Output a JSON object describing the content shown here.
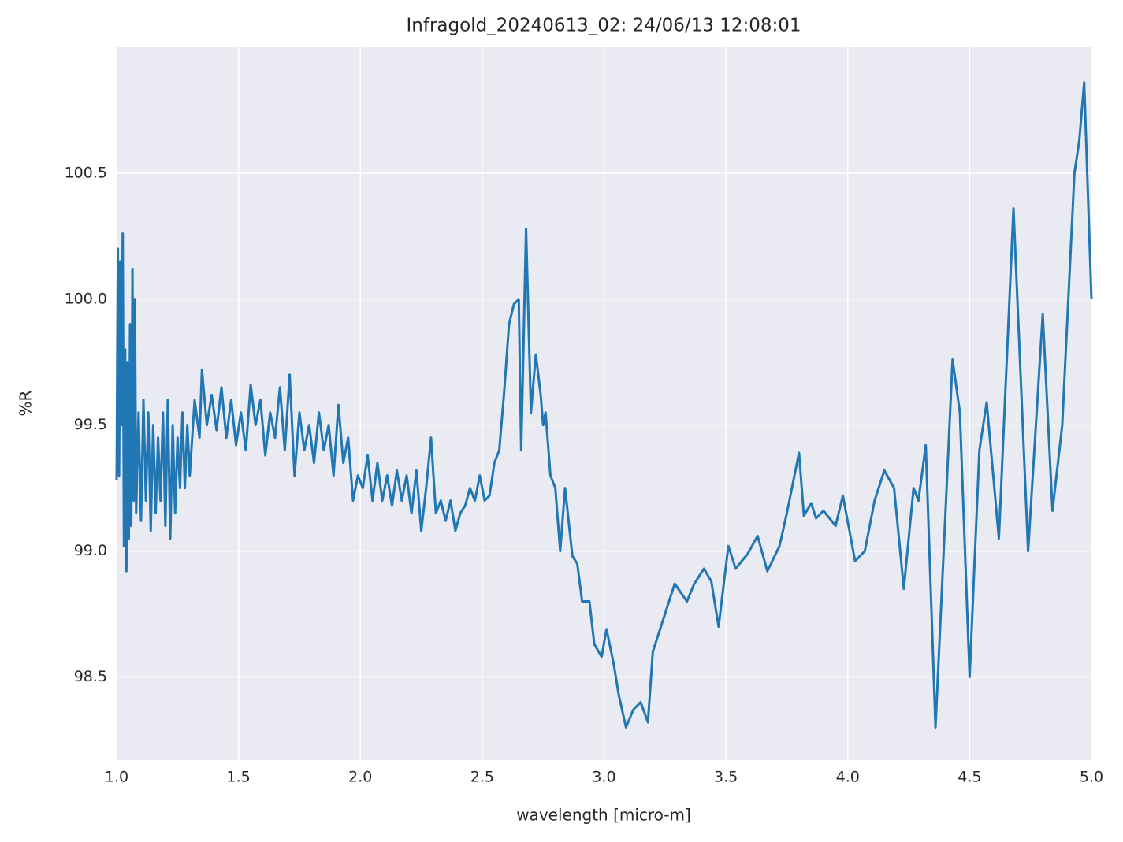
{
  "chart_data": {
    "type": "line",
    "title": "Infragold_20240613_02:  24/06/13 12:08:01",
    "xlabel": "wavelength [micro-m]",
    "ylabel": "%R",
    "xlim": [
      1.0,
      5.0
    ],
    "ylim": [
      98.17,
      101.0
    ],
    "xticks": [
      {
        "value": 1,
        "label": "1.0"
      },
      1.5,
      {
        "value": 2,
        "label": "2.0"
      },
      2.5,
      {
        "value": 3,
        "label": "3.0"
      },
      3.5,
      {
        "value": 4,
        "label": "4.0"
      },
      4.5,
      {
        "value": 5,
        "label": "5.0"
      }
    ],
    "yticks": [
      98.5,
      {
        "value": 99,
        "label": "99.0"
      },
      99.5,
      {
        "value": 100,
        "label": "100.0"
      },
      100.5
    ],
    "grid": true,
    "x": [
      1.0,
      1.005,
      1.01,
      1.015,
      1.02,
      1.025,
      1.03,
      1.035,
      1.04,
      1.045,
      1.05,
      1.055,
      1.06,
      1.065,
      1.07,
      1.075,
      1.08,
      1.09,
      1.1,
      1.11,
      1.12,
      1.13,
      1.14,
      1.15,
      1.16,
      1.17,
      1.18,
      1.19,
      1.2,
      1.21,
      1.22,
      1.23,
      1.24,
      1.25,
      1.26,
      1.27,
      1.28,
      1.29,
      1.3,
      1.32,
      1.34,
      1.35,
      1.37,
      1.39,
      1.41,
      1.43,
      1.45,
      1.47,
      1.49,
      1.51,
      1.53,
      1.55,
      1.57,
      1.59,
      1.61,
      1.63,
      1.65,
      1.67,
      1.69,
      1.71,
      1.73,
      1.75,
      1.77,
      1.79,
      1.81,
      1.83,
      1.85,
      1.87,
      1.89,
      1.91,
      1.93,
      1.95,
      1.97,
      1.99,
      2.01,
      2.03,
      2.05,
      2.07,
      2.09,
      2.11,
      2.13,
      2.15,
      2.17,
      2.19,
      2.21,
      2.23,
      2.25,
      2.27,
      2.29,
      2.31,
      2.33,
      2.35,
      2.37,
      2.39,
      2.41,
      2.43,
      2.45,
      2.47,
      2.49,
      2.51,
      2.53,
      2.55,
      2.57,
      2.59,
      2.61,
      2.63,
      2.65,
      2.66,
      2.68,
      2.7,
      2.72,
      2.74,
      2.75,
      2.76,
      2.78,
      2.8,
      2.82,
      2.84,
      2.87,
      2.89,
      2.91,
      2.94,
      2.96,
      2.99,
      3.01,
      3.04,
      3.06,
      3.09,
      3.12,
      3.15,
      3.18,
      3.2,
      3.25,
      3.29,
      3.34,
      3.37,
      3.41,
      3.44,
      3.47,
      3.51,
      3.54,
      3.59,
      3.63,
      3.67,
      3.72,
      3.75,
      3.8,
      3.82,
      3.85,
      3.87,
      3.9,
      3.95,
      3.98,
      4.03,
      4.07,
      4.11,
      4.15,
      4.19,
      4.23,
      4.27,
      4.29,
      4.32,
      4.36,
      4.43,
      4.46,
      4.5,
      4.54,
      4.57,
      4.62,
      4.68,
      4.74,
      4.8,
      4.84,
      4.88,
      4.93,
      4.95,
      4.97,
      5.0
    ],
    "series": [
      {
        "name": "%R",
        "color": "#2077b4",
        "values": [
          99.28,
          100.2,
          99.3,
          100.15,
          99.5,
          100.26,
          99.02,
          99.8,
          98.92,
          99.75,
          99.05,
          99.9,
          99.1,
          100.12,
          99.2,
          100.0,
          99.15,
          99.55,
          99.12,
          99.6,
          99.2,
          99.55,
          99.08,
          99.5,
          99.15,
          99.45,
          99.2,
          99.55,
          99.1,
          99.6,
          99.05,
          99.5,
          99.15,
          99.45,
          99.25,
          99.55,
          99.25,
          99.5,
          99.3,
          99.6,
          99.45,
          99.72,
          99.5,
          99.62,
          99.48,
          99.65,
          99.45,
          99.6,
          99.42,
          99.55,
          99.4,
          99.66,
          99.5,
          99.6,
          99.38,
          99.55,
          99.45,
          99.65,
          99.4,
          99.7,
          99.3,
          99.55,
          99.4,
          99.5,
          99.35,
          99.55,
          99.4,
          99.5,
          99.3,
          99.58,
          99.35,
          99.45,
          99.2,
          99.3,
          99.25,
          99.38,
          99.2,
          99.35,
          99.2,
          99.3,
          99.18,
          99.32,
          99.2,
          99.3,
          99.15,
          99.32,
          99.08,
          99.25,
          99.45,
          99.15,
          99.2,
          99.12,
          99.2,
          99.08,
          99.15,
          99.18,
          99.25,
          99.2,
          99.3,
          99.2,
          99.22,
          99.35,
          99.4,
          99.63,
          99.9,
          99.98,
          100.0,
          99.4,
          100.28,
          99.55,
          99.78,
          99.62,
          99.5,
          99.55,
          99.3,
          99.25,
          99.0,
          99.25,
          98.98,
          98.95,
          98.8,
          98.8,
          98.63,
          98.58,
          98.69,
          98.55,
          98.43,
          98.3,
          98.37,
          98.4,
          98.32,
          98.6,
          98.75,
          98.87,
          98.8,
          98.87,
          98.93,
          98.88,
          98.7,
          99.02,
          98.93,
          98.99,
          99.06,
          98.92,
          99.02,
          99.15,
          99.39,
          99.14,
          99.19,
          99.13,
          99.16,
          99.1,
          99.22,
          98.96,
          99.0,
          99.2,
          99.32,
          99.25,
          98.85,
          99.25,
          99.2,
          99.42,
          98.3,
          99.76,
          99.55,
          98.5,
          99.4,
          99.59,
          99.05,
          100.36,
          99.0,
          99.94,
          99.16,
          99.5,
          100.5,
          100.63,
          100.86,
          100.0
        ]
      }
    ]
  }
}
